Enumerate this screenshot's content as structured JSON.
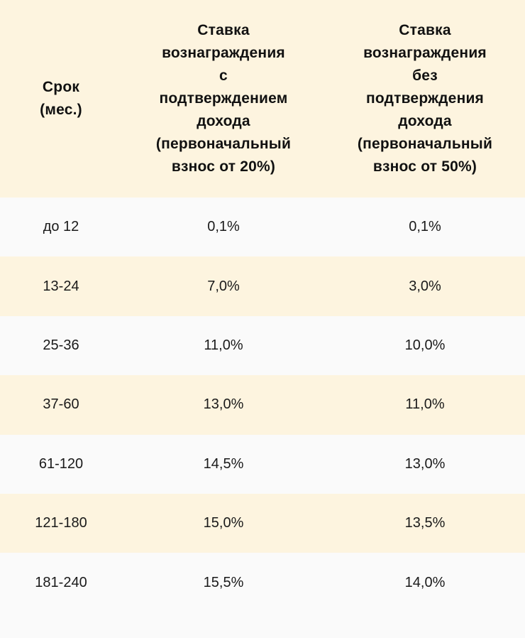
{
  "table": {
    "headers": [
      "Срок\n(мес.)",
      "Ставка\nвознаграждения\nс\nподтверждением\nдохода\n(первоначальный\nвзнос от 20%)",
      "Ставка\nвознаграждения\nбез\nподтверждения\nдохода\n(первоначальный\nвзнос от 50%)"
    ],
    "rows": [
      [
        "до 12",
        "0,1%",
        "0,1%"
      ],
      [
        "13-24",
        "7,0%",
        "3,0%"
      ],
      [
        "25-36",
        "11,0%",
        "10,0%"
      ],
      [
        "37-60",
        "13,0%",
        "11,0%"
      ],
      [
        "61-120",
        "14,5%",
        "13,0%"
      ],
      [
        "121-180",
        "15,0%",
        "13,5%"
      ],
      [
        "181-240",
        "15,5%",
        "14,0%"
      ]
    ]
  },
  "colors": {
    "header_bg": "#fdf4df",
    "stripe_bg": "#fdf4df",
    "base_bg": "#fafafa",
    "text": "#111111"
  }
}
